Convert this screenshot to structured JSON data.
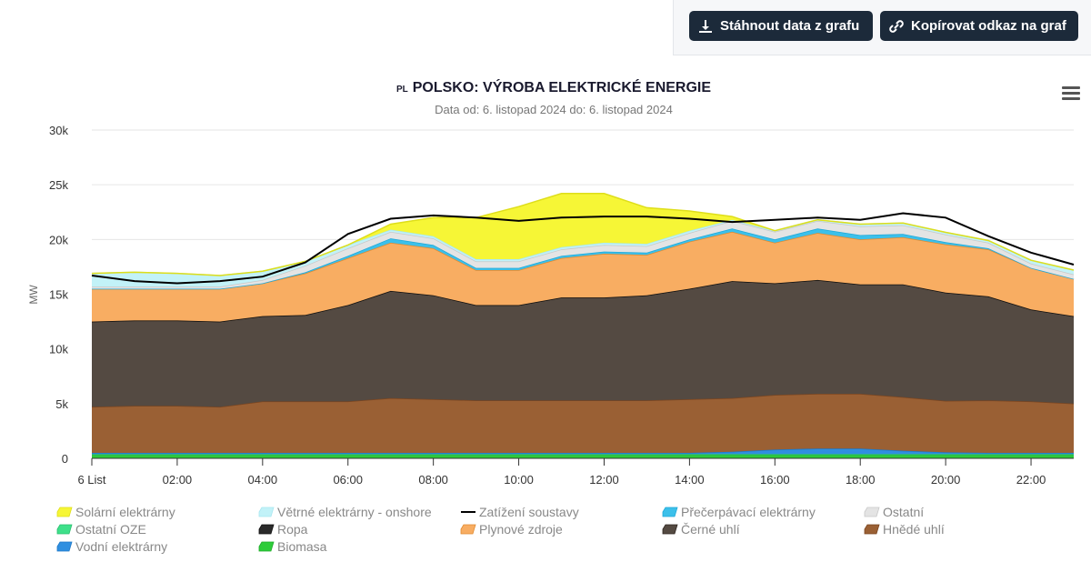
{
  "toolbar": {
    "download_label": "Stáhnout data z grafu",
    "download_icon": "download-icon",
    "copy_label": "Kopírovat odkaz na graf",
    "copy_icon": "link-icon"
  },
  "menu_icon": "hamburger-menu-icon",
  "chart_data": {
    "type": "area",
    "stacked": true,
    "title_prefix": "PL",
    "title": "POLSKO: VÝROBA ELEKTRICKÉ ENERGIE",
    "subtitle": "Data od: 6. listopad 2024 do: 6. listopad 2024",
    "ylabel": "MW",
    "xlabel": "",
    "ylim": [
      0,
      30000
    ],
    "yticks": [
      0,
      5000,
      10000,
      15000,
      20000,
      25000,
      30000
    ],
    "ytick_labels": [
      "0",
      "5k",
      "10k",
      "15k",
      "20k",
      "25k",
      "30k"
    ],
    "x": [
      0,
      1,
      2,
      3,
      4,
      5,
      6,
      7,
      8,
      9,
      10,
      11,
      12,
      13,
      14,
      15,
      16,
      17,
      18,
      19,
      20,
      21,
      22,
      23
    ],
    "xticks": [
      0,
      2,
      4,
      6,
      8,
      10,
      12,
      14,
      16,
      18,
      20,
      22
    ],
    "xtick_labels": [
      "6 List",
      "02:00",
      "04:00",
      "06:00",
      "08:00",
      "10:00",
      "12:00",
      "14:00",
      "16:00",
      "18:00",
      "20:00",
      "22:00"
    ],
    "grid": true,
    "legend_position": "bottom",
    "series": [
      {
        "name": "Biomasa",
        "color": "#2ecc3a",
        "line": "#1faa2a",
        "values": [
          300,
          300,
          300,
          300,
          300,
          300,
          300,
          300,
          300,
          300,
          300,
          300,
          300,
          300,
          300,
          300,
          300,
          300,
          300,
          300,
          300,
          300,
          300,
          300
        ]
      },
      {
        "name": "Ostatní OZE",
        "color": "#3ee08a",
        "line": "#2bbf70",
        "values": [
          100,
          100,
          100,
          100,
          100,
          100,
          100,
          100,
          100,
          100,
          100,
          100,
          100,
          100,
          100,
          100,
          100,
          100,
          100,
          100,
          100,
          100,
          100,
          100
        ]
      },
      {
        "name": "Vodní elektrárny",
        "color": "#2f8fe0",
        "line": "#1e78c8",
        "values": [
          100,
          100,
          100,
          100,
          100,
          100,
          100,
          100,
          100,
          100,
          100,
          100,
          100,
          100,
          100,
          200,
          400,
          500,
          500,
          300,
          150,
          100,
          100,
          100
        ]
      },
      {
        "name": "Hnědé uhlí",
        "color": "#9a6034",
        "line": "#7a4520",
        "values": [
          4200,
          4300,
          4300,
          4200,
          4700,
          4700,
          4700,
          5000,
          4900,
          4800,
          4800,
          4800,
          4800,
          4800,
          4900,
          4900,
          5000,
          5000,
          5000,
          4900,
          4700,
          4800,
          4700,
          4500
        ]
      },
      {
        "name": "Černé uhlí",
        "color": "#544a42",
        "line": "#2e2620",
        "values": [
          7800,
          7800,
          7800,
          7800,
          7800,
          7900,
          8800,
          9800,
          9500,
          8700,
          8700,
          9400,
          9400,
          9600,
          10100,
          10700,
          10200,
          10400,
          10000,
          10300,
          9900,
          9500,
          8400,
          8000
        ]
      },
      {
        "name": "Ropa",
        "color": "#2a2a2a",
        "line": "#111111",
        "values": [
          0,
          0,
          0,
          0,
          0,
          0,
          0,
          0,
          0,
          0,
          0,
          0,
          0,
          0,
          0,
          0,
          0,
          0,
          0,
          0,
          0,
          0,
          0,
          0
        ]
      },
      {
        "name": "Plynové zdroje",
        "color": "#f8ad62",
        "line": "#e08a30",
        "values": [
          3000,
          2900,
          2900,
          3000,
          3000,
          3800,
          4300,
          4400,
          4300,
          3200,
          3200,
          3600,
          4000,
          3700,
          4300,
          4500,
          3700,
          4300,
          4100,
          4300,
          4400,
          4300,
          3800,
          3400
        ]
      },
      {
        "name": "Přečerpávací elektrárny",
        "color": "#3cc0ea",
        "line": "#20a8d8",
        "values": [
          0,
          0,
          0,
          0,
          0,
          100,
          200,
          400,
          300,
          200,
          200,
          200,
          200,
          200,
          200,
          300,
          300,
          400,
          400,
          300,
          200,
          100,
          0,
          0
        ]
      },
      {
        "name": "Ostatní",
        "color": "#e4e4e4",
        "line": "#c8c8c8",
        "values": [
          200,
          200,
          200,
          200,
          300,
          600,
          700,
          600,
          600,
          600,
          600,
          600,
          600,
          600,
          600,
          700,
          700,
          700,
          800,
          800,
          700,
          500,
          400,
          400
        ]
      },
      {
        "name": "Větrné elektrárny - onshore",
        "color": "#c2f2f8",
        "line": "#a8e6f0",
        "values": [
          1200,
          1300,
          1200,
          1000,
          800,
          400,
          300,
          200,
          200,
          200,
          200,
          200,
          200,
          200,
          200,
          100,
          100,
          100,
          200,
          200,
          200,
          200,
          300,
          400
        ]
      },
      {
        "name": "Solární elektrárny",
        "color": "#f6f636",
        "line": "#dede1a",
        "values": [
          0,
          0,
          0,
          0,
          0,
          0,
          0,
          500,
          1700,
          3800,
          4800,
          4900,
          4500,
          3300,
          1800,
          300,
          0,
          0,
          0,
          0,
          0,
          0,
          0,
          0
        ]
      }
    ],
    "load": {
      "name": "Zatížení soustavy",
      "color": "#000000",
      "values": [
        16700,
        16200,
        16000,
        16200,
        16600,
        17900,
        20500,
        21900,
        22200,
        22000,
        21700,
        22000,
        22100,
        22100,
        21900,
        21600,
        21800,
        22000,
        21800,
        22400,
        22000,
        20300,
        18800,
        17700
      ]
    },
    "legend_order": [
      "Solární elektrárny",
      "Větrné elektrárny - onshore",
      "Zatížení soustavy",
      "Přečerpávací elektrárny",
      "Ostatní",
      "Ostatní OZE",
      "Ropa",
      "Plynové zdroje",
      "Černé uhlí",
      "Hnědé uhlí",
      "Vodní elektrárny",
      "Biomasa"
    ]
  }
}
